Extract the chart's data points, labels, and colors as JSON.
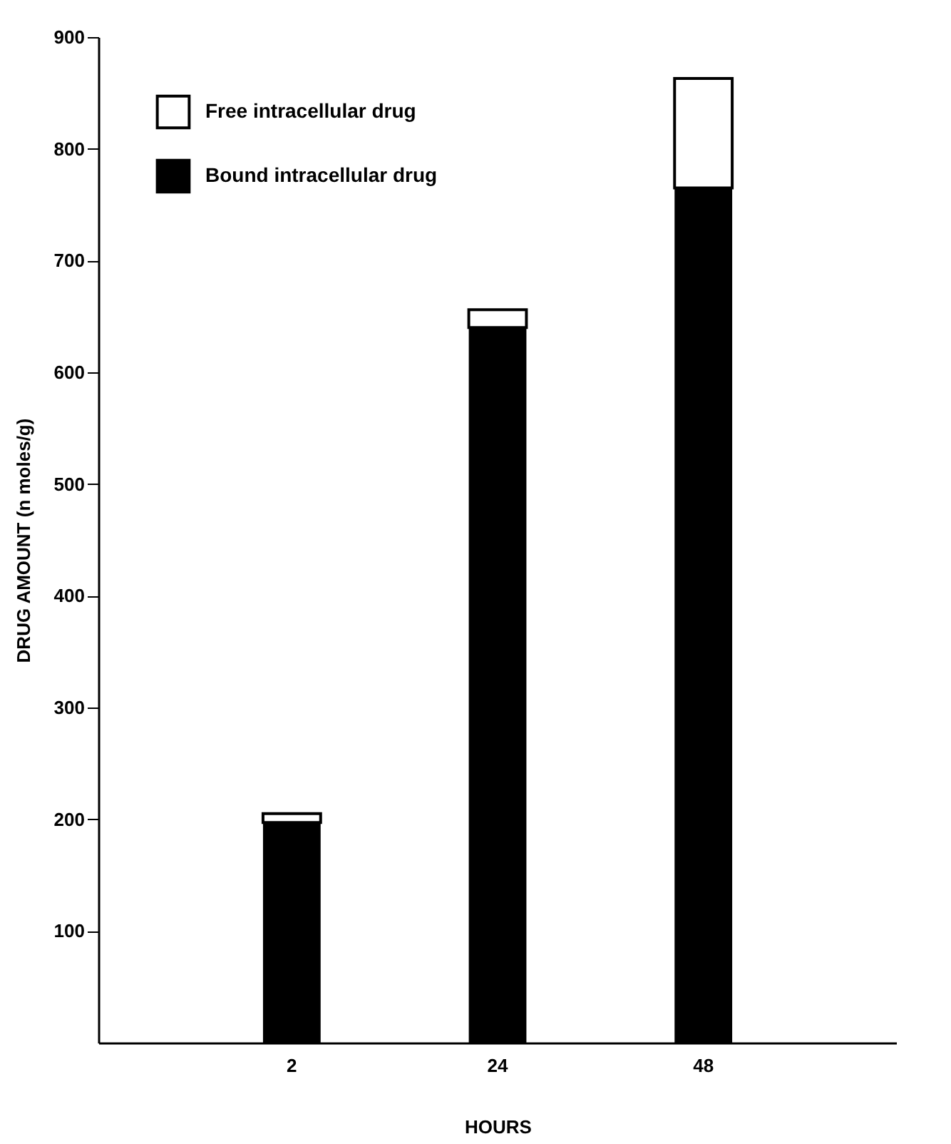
{
  "chart_data": {
    "type": "bar",
    "stacked": true,
    "xlabel": "HOURS",
    "ylabel": "DRUG AMOUNT (n moles/g)",
    "categories": [
      "2",
      "24",
      "48"
    ],
    "series": [
      {
        "name": "Bound intracellular drug",
        "color": "#000000",
        "values": [
          197,
          640,
          765
        ]
      },
      {
        "name": "Free intracellular drug",
        "color": "#ffffff",
        "values": [
          8,
          16,
          98
        ]
      }
    ],
    "ylim": [
      0,
      900
    ],
    "yticks": [
      100,
      200,
      300,
      400,
      500,
      600,
      700,
      800,
      900
    ],
    "grid": false,
    "legend": "top left"
  }
}
